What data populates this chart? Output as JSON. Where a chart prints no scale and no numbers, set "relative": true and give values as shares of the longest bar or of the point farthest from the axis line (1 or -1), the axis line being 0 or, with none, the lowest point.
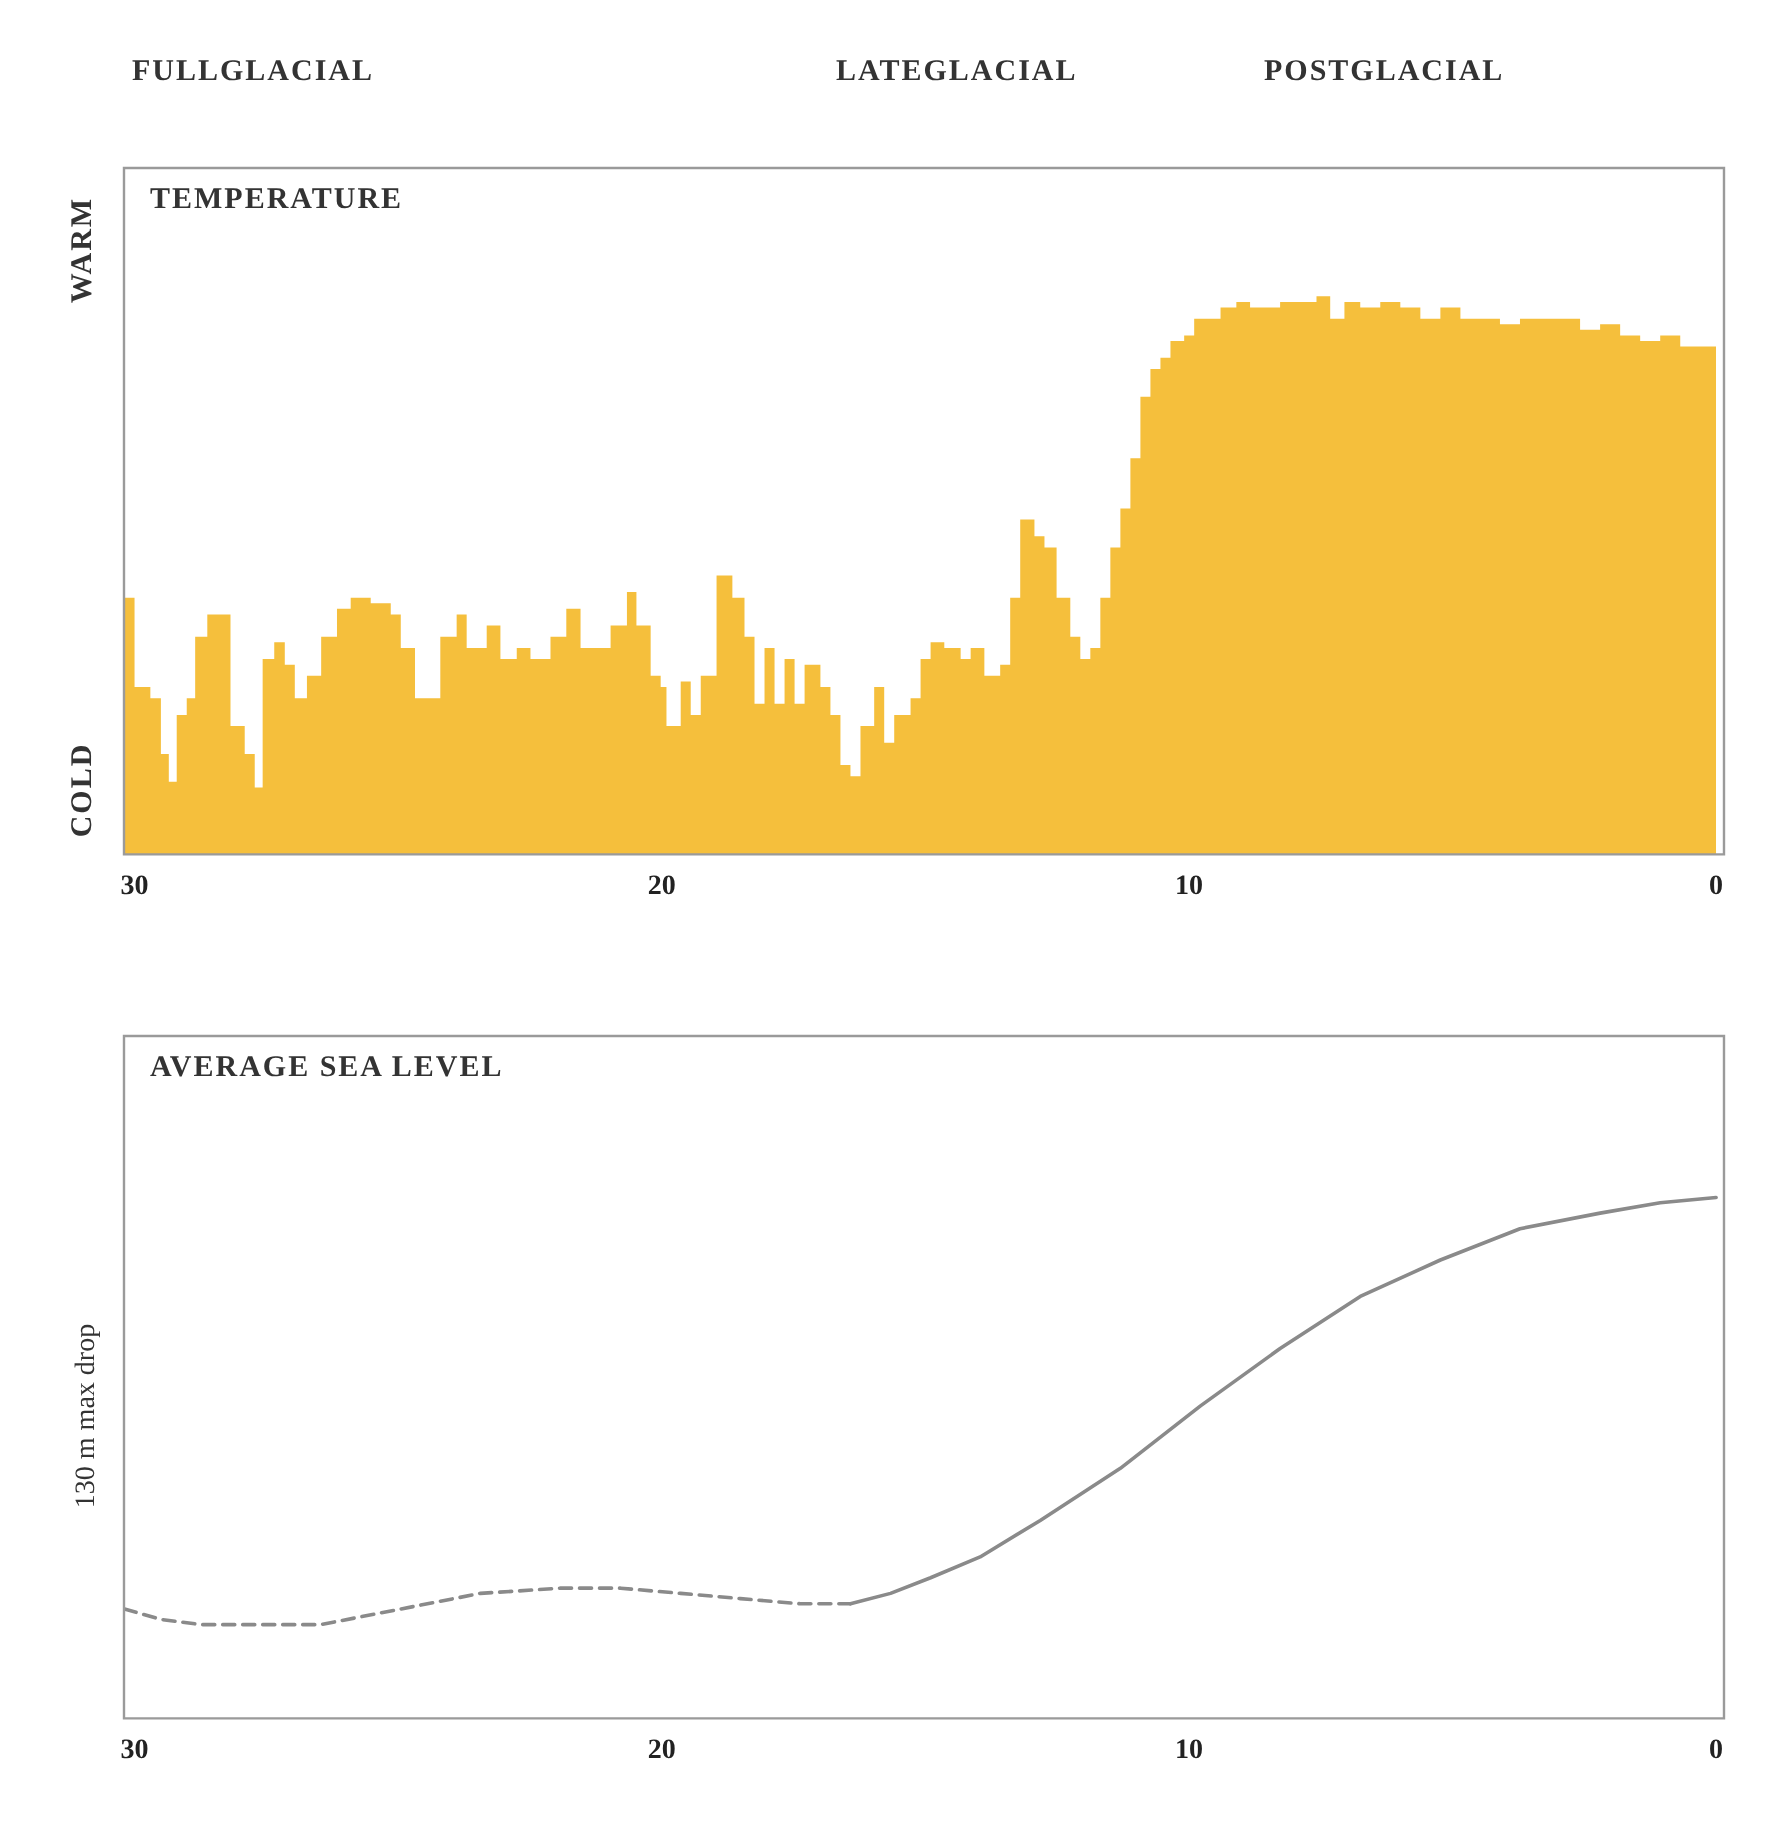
{
  "chart_data": [
    {
      "type": "step",
      "title": "TEMPERATURE",
      "relative": true,
      "xlim": [
        30.2,
        -0.15
      ],
      "xticks": [
        30,
        20,
        10,
        0
      ],
      "annotations": [
        "FULLGLACIAL",
        "LATEGLACIAL",
        "POSTGLACIAL",
        "WARM",
        "COLD"
      ],
      "series": [
        {
          "type": "area",
          "color": "#f5bf3c",
          "x": [
            30.19,
            30.0,
            29.7,
            29.5,
            29.35,
            29.2,
            29.01,
            28.85,
            28.62,
            28.37,
            28.18,
            27.91,
            27.72,
            27.57,
            27.35,
            27.15,
            26.96,
            26.73,
            26.46,
            26.16,
            25.9,
            25.52,
            25.14,
            24.95,
            24.68,
            24.38,
            24.2,
            23.89,
            23.7,
            23.32,
            23.06,
            22.75,
            22.49,
            22.11,
            21.81,
            21.54,
            21.16,
            20.97,
            20.66,
            20.48,
            20.21,
            20.02,
            19.91,
            19.64,
            19.45,
            19.26,
            18.96,
            18.66,
            18.43,
            18.24,
            18.05,
            17.86,
            17.67,
            17.48,
            17.29,
            16.99,
            16.8,
            16.61,
            16.42,
            16.23,
            15.97,
            15.78,
            15.59,
            15.28,
            15.09,
            14.9,
            14.64,
            14.33,
            14.14,
            13.88,
            13.58,
            13.39,
            13.2,
            12.93,
            12.74,
            12.51,
            12.25,
            12.06,
            11.87,
            11.68,
            11.49,
            11.3,
            11.11,
            10.92,
            10.73,
            10.54,
            10.35,
            10.09,
            9.9,
            9.67,
            9.4,
            9.1,
            8.84,
            8.65,
            8.27,
            7.89,
            7.58,
            7.32,
            7.05,
            6.75,
            6.37,
            5.99,
            5.61,
            5.23,
            4.85,
            4.47,
            4.1,
            3.72,
            3.34,
            2.96,
            2.58,
            2.2,
            1.82,
            1.44,
            1.06,
            0.68,
            0.3,
            0
          ],
          "values": [
            0.46,
            0.3,
            0.28,
            0.18,
            0.13,
            0.25,
            0.28,
            0.39,
            0.43,
            0.43,
            0.23,
            0.18,
            0.12,
            0.35,
            0.38,
            0.34,
            0.28,
            0.32,
            0.39,
            0.44,
            0.46,
            0.45,
            0.43,
            0.37,
            0.28,
            0.28,
            0.39,
            0.43,
            0.37,
            0.41,
            0.35,
            0.37,
            0.35,
            0.39,
            0.44,
            0.37,
            0.37,
            0.41,
            0.47,
            0.41,
            0.32,
            0.3,
            0.23,
            0.31,
            0.25,
            0.32,
            0.5,
            0.46,
            0.39,
            0.27,
            0.37,
            0.27,
            0.35,
            0.27,
            0.34,
            0.3,
            0.25,
            0.16,
            0.14,
            0.23,
            0.3,
            0.2,
            0.25,
            0.28,
            0.35,
            0.38,
            0.37,
            0.35,
            0.37,
            0.32,
            0.34,
            0.46,
            0.6,
            0.57,
            0.55,
            0.46,
            0.39,
            0.35,
            0.37,
            0.46,
            0.55,
            0.62,
            0.71,
            0.82,
            0.87,
            0.89,
            0.92,
            0.93,
            0.96,
            0.96,
            0.98,
            0.99,
            0.98,
            0.98,
            0.99,
            0.99,
            1,
            0.96,
            0.99,
            0.98,
            0.99,
            0.98,
            0.96,
            0.98,
            0.96,
            0.96,
            0.95,
            0.96,
            0.96,
            0.96,
            0.94,
            0.95,
            0.93,
            0.92,
            0.93,
            0.91,
            0.91,
            0.91
          ]
        }
      ]
    },
    {
      "type": "line",
      "title": "AVERAGE SEA LEVEL",
      "ylabel": "130 m max drop",
      "relative": true,
      "xlim": [
        30.2,
        -0.15
      ],
      "xticks": [
        30,
        20,
        10,
        0
      ],
      "series": [
        {
          "color": "#8a8a8a",
          "line_style": "dashed",
          "x": [
            30.19,
            29.5,
            28.74,
            27.61,
            26.47,
            24.95,
            23.44,
            21.92,
            20.78,
            19.64,
            18.51,
            17.37,
            16.42
          ],
          "values": [
            0.21,
            0.19,
            0.18,
            0.18,
            0.18,
            0.21,
            0.24,
            0.25,
            0.25,
            0.24,
            0.23,
            0.22,
            0.22
          ]
        },
        {
          "color": "#8a8a8a",
          "line_style": "solid",
          "x": [
            16.42,
            15.66,
            14.9,
            13.96,
            12.82,
            11.3,
            9.78,
            8.27,
            6.75,
            5.23,
            3.72,
            2.2,
            1.06,
            0
          ],
          "values": [
            0.22,
            0.24,
            0.27,
            0.31,
            0.38,
            0.48,
            0.6,
            0.71,
            0.81,
            0.88,
            0.94,
            0.97,
            0.99,
            1
          ]
        }
      ]
    }
  ]
}
